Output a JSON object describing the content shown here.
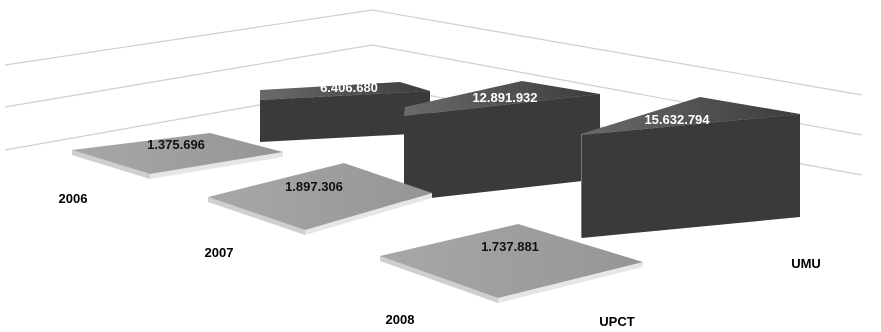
{
  "chart_data": {
    "type": "bar",
    "categories": [
      "2006",
      "2007",
      "2008"
    ],
    "series": [
      {
        "name": "UPCT",
        "values": [
          1375696,
          1897306,
          1737881
        ]
      },
      {
        "name": "UMU",
        "values": [
          6406680,
          12891932,
          15632794
        ]
      }
    ],
    "data_labels": {
      "UPCT": [
        "1.375.696",
        "1.897.306",
        "1.737.881"
      ],
      "UMU": [
        "6.406.680",
        "12.891.932",
        "15.632.794"
      ]
    },
    "title": "",
    "xlabel": "",
    "ylabel": "",
    "ylim": [
      0,
      16000000
    ],
    "grid": true,
    "legend": "none",
    "style": "3d-columns",
    "colors": {
      "UPCT_top": "#9c9c9c",
      "UPCT_side": "#d2d2d2",
      "UMU_top": "#4a4a4a",
      "UMU_front_light": "#c9c9c9",
      "UMU_front_dark": "#3e3e3e",
      "grid": "#cfcfcf"
    }
  }
}
